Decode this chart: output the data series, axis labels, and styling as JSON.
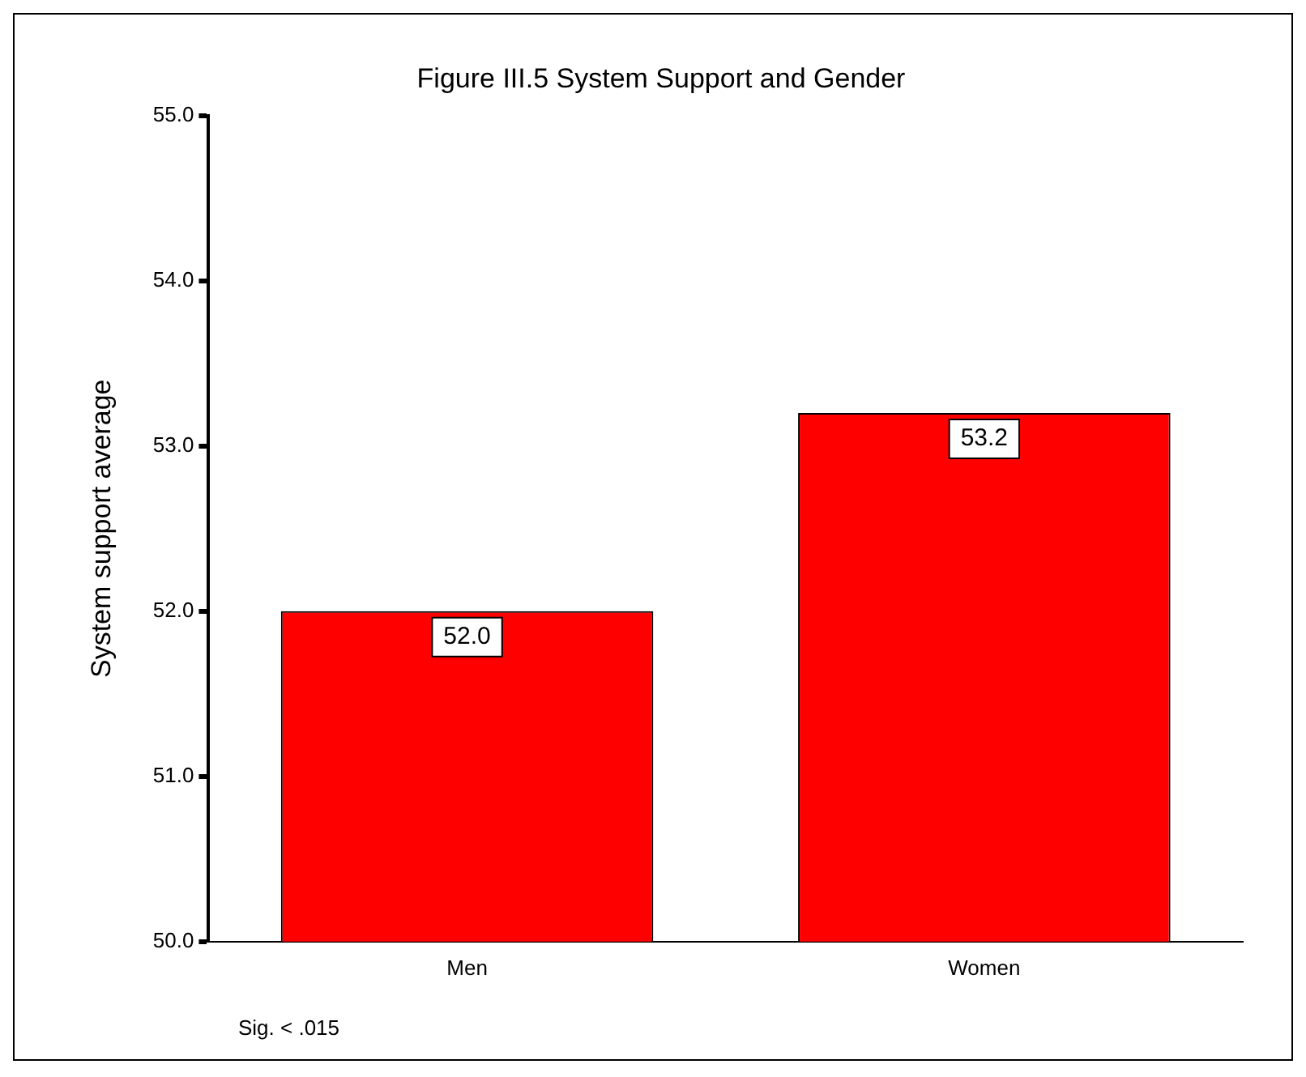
{
  "chart_data": {
    "type": "bar",
    "title": "Figure III.5 System Support and Gender",
    "ylabel": "System support average",
    "categories": [
      "Men",
      "Women"
    ],
    "values": [
      52.0,
      53.2
    ],
    "color": "#ff0000",
    "value_labels": [
      "52.0",
      "53.2"
    ],
    "ylim": [
      50,
      55
    ],
    "yticks": [
      {
        "value": 50,
        "label": "50.0"
      },
      {
        "value": 51,
        "label": "51.0"
      },
      {
        "value": 52,
        "label": "52.0"
      },
      {
        "value": 53,
        "label": "53.0"
      },
      {
        "value": 54,
        "label": "54.0"
      },
      {
        "value": 55,
        "label": "55.0"
      }
    ],
    "grid": false,
    "legend": false,
    "annotations": [
      "Sig. < .015"
    ]
  }
}
